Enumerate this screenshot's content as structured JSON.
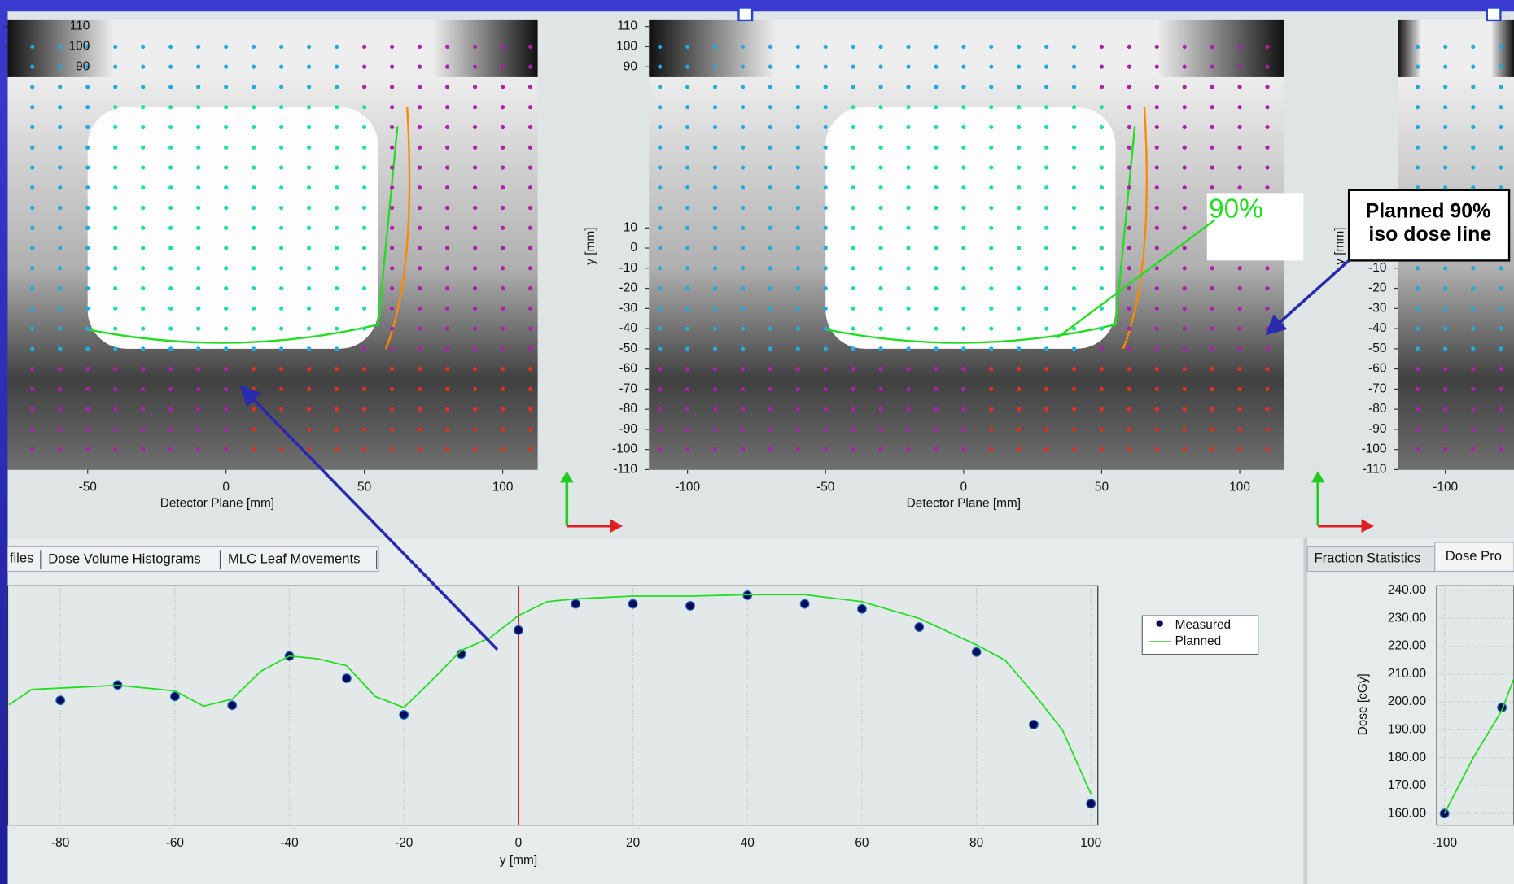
{
  "tabs": [
    "files",
    "Dose Volume Histograms",
    "MLC Leaf Movements"
  ],
  "right_tabs": [
    "Fraction Statistics",
    "Dose Pro"
  ],
  "annotations": {
    "iso_label": "90%",
    "callout_lines": [
      "Planned 90%",
      "iso dose line"
    ]
  },
  "chart_data": [
    {
      "type": "dose-map",
      "xlabel": "Detector Plane [mm]",
      "xlim": [
        -78.9,
        112.7
      ],
      "ylim": [
        -110.2,
        113.6
      ],
      "xticks": [
        -50,
        0,
        50,
        100
      ],
      "yticks": [
        110,
        100,
        90
      ]
    },
    {
      "type": "dose-map",
      "xlabel": "Detector Plane [mm]",
      "ylabel": "y [mm]",
      "xlim": [
        -114,
        116.1
      ],
      "ylim": [
        -110.2,
        113.6
      ],
      "xticks": [
        -100,
        -50,
        0,
        50,
        100
      ],
      "yticks": [
        110,
        100,
        90,
        10,
        0,
        -10,
        -20,
        -30,
        -40,
        -50,
        -60,
        -70,
        -80,
        -90,
        -100,
        -110
      ]
    },
    {
      "type": "dose-map",
      "ylabel": "y [mm]",
      "xlim": [
        -117,
        -75.3
      ],
      "ylim": [
        -110.2,
        113.6
      ],
      "xticks": [
        -100
      ],
      "yticks": [
        -10,
        -20,
        -30,
        -40,
        -50,
        -60,
        -70,
        -80,
        -90,
        -100,
        -110
      ]
    },
    {
      "type": "profile",
      "xlabel": "y [mm]",
      "xlim": [
        -89.2,
        101.2
      ],
      "ylim": [
        155.8,
        241.7
      ],
      "xticks": [
        -80,
        -60,
        -40,
        -20,
        0,
        20,
        40,
        60,
        80,
        100
      ],
      "grid": true,
      "cursor": 0,
      "cursor_color": "#e02020",
      "series": [
        {
          "name": "Measured",
          "color": "#0a0a5a",
          "style": "markers",
          "x": [
            -80,
            -70,
            -60,
            -50,
            -40,
            -30,
            -20,
            -10,
            0,
            10,
            20,
            30,
            40,
            50,
            60,
            70,
            80,
            90,
            100
          ],
          "values": [
            200.6,
            206.1,
            202.0,
            198.8,
            216.5,
            208.5,
            195.4,
            217.2,
            225.8,
            235.2,
            235.2,
            234.5,
            238.3,
            235.2,
            233.4,
            226.9,
            217.9,
            191.9,
            163.5
          ]
        },
        {
          "name": "Planned",
          "color": "#22dd22",
          "style": "line",
          "x": [
            -89,
            -85,
            -80,
            -70,
            -60,
            -55,
            -50,
            -45,
            -40,
            -35,
            -30,
            -25,
            -20,
            -15,
            -10,
            -5,
            0,
            5,
            10,
            20,
            30,
            40,
            50,
            60,
            70,
            80,
            85,
            90,
            95,
            100
          ],
          "values": [
            199,
            204.5,
            205,
            206,
            204,
            198.5,
            201,
            211,
            216.5,
            215.5,
            213,
            202,
            198,
            208,
            218.5,
            223,
            231,
            236,
            237,
            238,
            238,
            238.5,
            238.5,
            236,
            230,
            220.5,
            215,
            203,
            190,
            167
          ]
        }
      ]
    },
    {
      "type": "profile",
      "ylabel": "Dose [cGy]",
      "xlim": [
        -101.35,
        -87.9
      ],
      "ylim": [
        155.8,
        241.7
      ],
      "xticks": [
        -100
      ],
      "yticks": [
        {
          "value": 160,
          "label": "160.00"
        },
        {
          "value": 170,
          "label": "170.00"
        },
        {
          "value": 180,
          "label": "180.00"
        },
        {
          "value": 190,
          "label": "190.00"
        },
        {
          "value": 200,
          "label": "200.00"
        },
        {
          "value": 210,
          "label": "210.00"
        },
        {
          "value": 220,
          "label": "220.00"
        },
        {
          "value": 230,
          "label": "230.00"
        },
        {
          "value": 240,
          "label": "240.00"
        }
      ],
      "grid": true,
      "series": [
        {
          "name": "Measured",
          "color": "#0a0a5a",
          "style": "markers",
          "x": [
            -100,
            -90
          ],
          "values": [
            160,
            198
          ]
        },
        {
          "name": "Planned",
          "color": "#22dd22",
          "style": "line",
          "x": [
            -100,
            -95,
            -90,
            -88
          ],
          "values": [
            160,
            180,
            197,
            208
          ]
        }
      ]
    }
  ]
}
